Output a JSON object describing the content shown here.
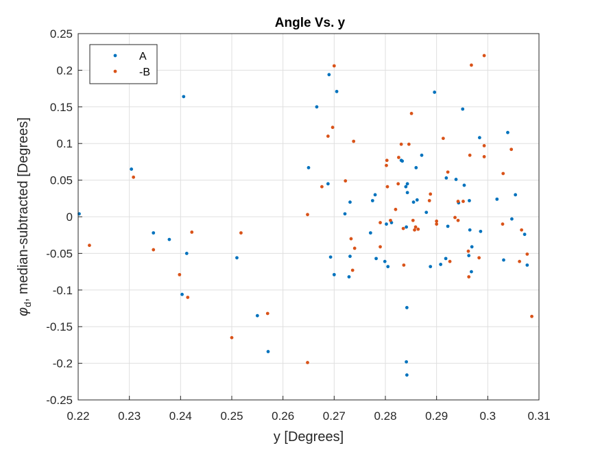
{
  "chart_data": {
    "type": "scatter",
    "title": "Angle Vs. y",
    "xlabel": "y [Degrees]",
    "ylabel_symbol": "φ",
    "ylabel_subscript": "d",
    "ylabel_rest": ", median-subtracted [Degrees]",
    "xlim": [
      0.22,
      0.31
    ],
    "ylim": [
      -0.25,
      0.25
    ],
    "xticks": [
      "0.22",
      "0.23",
      "0.24",
      "0.25",
      "0.26",
      "0.27",
      "0.28",
      "0.29",
      "0.3",
      "0.31"
    ],
    "yticks": [
      "0.25",
      "0.2",
      "0.15",
      "0.1",
      "0.05",
      "0",
      "-0.05",
      "-0.1",
      "-0.15",
      "-0.2",
      "-0.25"
    ],
    "grid": true,
    "legend_position": "top-left",
    "series": [
      {
        "name": "A",
        "color": "#0072BD",
        "points": [
          [
            0.2202,
            0.004
          ],
          [
            0.2304,
            0.065
          ],
          [
            0.2347,
            -0.022
          ],
          [
            0.2378,
            -0.031
          ],
          [
            0.2403,
            -0.106
          ],
          [
            0.2406,
            0.164
          ],
          [
            0.2412,
            -0.05
          ],
          [
            0.251,
            -0.056
          ],
          [
            0.255,
            -0.135
          ],
          [
            0.2571,
            -0.184
          ],
          [
            0.265,
            0.067
          ],
          [
            0.2666,
            0.15
          ],
          [
            0.2688,
            0.045
          ],
          [
            0.269,
            0.194
          ],
          [
            0.2693,
            -0.055
          ],
          [
            0.27,
            -0.079
          ],
          [
            0.2705,
            0.171
          ],
          [
            0.2721,
            0.004
          ],
          [
            0.2729,
            -0.082
          ],
          [
            0.2731,
            -0.054
          ],
          [
            0.2731,
            0.02
          ],
          [
            0.2771,
            -0.022
          ],
          [
            0.2775,
            0.022
          ],
          [
            0.278,
            0.03
          ],
          [
            0.2782,
            -0.057
          ],
          [
            0.2799,
            -0.061
          ],
          [
            0.2802,
            -0.01
          ],
          [
            0.2805,
            -0.068
          ],
          [
            0.2812,
            -0.008
          ],
          [
            0.2831,
            0.077
          ],
          [
            0.2833,
            0.076
          ],
          [
            0.284,
            0.041
          ],
          [
            0.2841,
            -0.014
          ],
          [
            0.2841,
            -0.198
          ],
          [
            0.2842,
            -0.124
          ],
          [
            0.2842,
            -0.216
          ],
          [
            0.2843,
            0.045
          ],
          [
            0.2843,
            0.033
          ],
          [
            0.2855,
            0.02
          ],
          [
            0.286,
            0.067
          ],
          [
            0.2862,
            0.023
          ],
          [
            0.2871,
            0.084
          ],
          [
            0.288,
            0.006
          ],
          [
            0.2888,
            -0.068
          ],
          [
            0.2896,
            0.17
          ],
          [
            0.2908,
            -0.065
          ],
          [
            0.2918,
            -0.057
          ],
          [
            0.2919,
            0.053
          ],
          [
            0.2922,
            -0.013
          ],
          [
            0.2938,
            0.051
          ],
          [
            0.2943,
            0.019
          ],
          [
            0.2951,
            0.147
          ],
          [
            0.2954,
            0.043
          ],
          [
            0.2963,
            -0.053
          ],
          [
            0.2964,
            0.022
          ],
          [
            0.2965,
            -0.018
          ],
          [
            0.2968,
            -0.075
          ],
          [
            0.2969,
            -0.041
          ],
          [
            0.2984,
            0.108
          ],
          [
            0.2986,
            -0.02
          ],
          [
            0.3018,
            0.024
          ],
          [
            0.3031,
            -0.059
          ],
          [
            0.3039,
            0.115
          ],
          [
            0.3047,
            -0.003
          ],
          [
            0.3054,
            0.03
          ],
          [
            0.3072,
            -0.024
          ],
          [
            0.3077,
            -0.066
          ]
        ]
      },
      {
        "name": "-B",
        "color": "#D95319",
        "points": [
          [
            0.2222,
            -0.039
          ],
          [
            0.2308,
            0.054
          ],
          [
            0.2347,
            -0.045
          ],
          [
            0.2398,
            -0.079
          ],
          [
            0.2414,
            -0.11
          ],
          [
            0.2422,
            -0.021
          ],
          [
            0.25,
            -0.165
          ],
          [
            0.2518,
            -0.022
          ],
          [
            0.257,
            -0.132
          ],
          [
            0.2648,
            0.003
          ],
          [
            0.2648,
            -0.199
          ],
          [
            0.2676,
            0.041
          ],
          [
            0.2688,
            0.11
          ],
          [
            0.2697,
            0.122
          ],
          [
            0.27,
            0.206
          ],
          [
            0.2722,
            0.049
          ],
          [
            0.2733,
            -0.03
          ],
          [
            0.2736,
            -0.073
          ],
          [
            0.2738,
            0.103
          ],
          [
            0.274,
            -0.043
          ],
          [
            0.279,
            -0.008
          ],
          [
            0.279,
            -0.041
          ],
          [
            0.2802,
            0.07
          ],
          [
            0.2803,
            0.077
          ],
          [
            0.2804,
            0.041
          ],
          [
            0.281,
            -0.005
          ],
          [
            0.282,
            0.01
          ],
          [
            0.2825,
            0.045
          ],
          [
            0.2826,
            0.081
          ],
          [
            0.2831,
            0.099
          ],
          [
            0.2835,
            -0.016
          ],
          [
            0.2836,
            -0.066
          ],
          [
            0.2846,
            0.099
          ],
          [
            0.2851,
            0.141
          ],
          [
            0.2854,
            -0.005
          ],
          [
            0.2857,
            -0.018
          ],
          [
            0.2859,
            -0.014
          ],
          [
            0.2864,
            -0.017
          ],
          [
            0.2886,
            0.022
          ],
          [
            0.2888,
            0.031
          ],
          [
            0.29,
            -0.006
          ],
          [
            0.29,
            -0.01
          ],
          [
            0.2913,
            0.107
          ],
          [
            0.2922,
            0.061
          ],
          [
            0.2926,
            -0.061
          ],
          [
            0.2936,
            -0.001
          ],
          [
            0.2942,
            0.021
          ],
          [
            0.2942,
            -0.005
          ],
          [
            0.2952,
            0.021
          ],
          [
            0.2962,
            -0.047
          ],
          [
            0.2963,
            -0.082
          ],
          [
            0.2965,
            0.084
          ],
          [
            0.2968,
            0.207
          ],
          [
            0.2983,
            -0.056
          ],
          [
            0.2993,
            0.22
          ],
          [
            0.2993,
            0.082
          ],
          [
            0.2993,
            0.097
          ],
          [
            0.3029,
            -0.01
          ],
          [
            0.303,
            0.059
          ],
          [
            0.3046,
            0.092
          ],
          [
            0.3062,
            -0.061
          ],
          [
            0.3066,
            -0.018
          ],
          [
            0.3077,
            -0.051
          ],
          [
            0.3086,
            -0.136
          ]
        ]
      }
    ]
  }
}
